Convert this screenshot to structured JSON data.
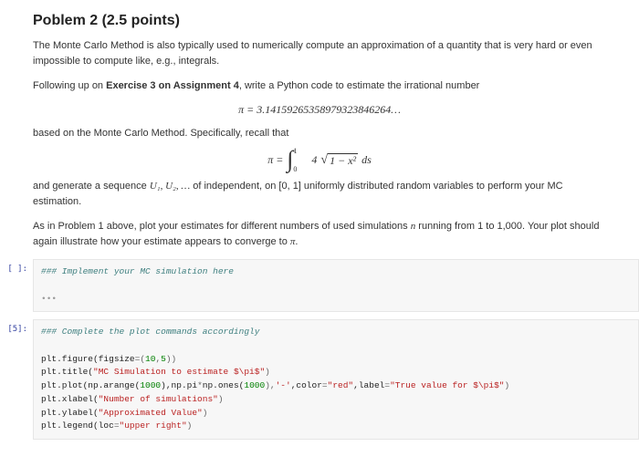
{
  "title": "Poblem 2 (2.5 points)",
  "para1": "The Monte Carlo Method is also typically used to numerically compute an approximation of a quantity that is very hard or even impossible to compute like, e.g., integrals.",
  "para2_pre": "Following up on ",
  "para2_bold": "Exercise 3 on Assignment 4",
  "para2_post": ", write a Python code to estimate the irrational number",
  "formula1": "π = 3.14159265358979323846264…",
  "para3": "based on the Monte Carlo Method. Specifically, recall that",
  "formula2_lhs": "π = ",
  "formula2_coeff": "4",
  "formula2_radicand": "1 − x²",
  "formula2_ds": "ds",
  "formula2_low": "0",
  "formula2_up": "1",
  "para4_pre": "and generate a sequence ",
  "para4_seq": "U₁, U₂, …",
  "para4_mid": " of independent, on ",
  "para4_interval": "[0, 1]",
  "para4_post": " uniformly distributed random variables to perform your MC estimation.",
  "para5_pre": "As in Problem 1 above, plot your estimates for different numbers of used simulations ",
  "para5_n": "n",
  "para5_mid": " running from 1 to 1,000. Your plot should again illustrate how your estimate appears to converge to ",
  "para5_pi": "π",
  "para5_end": ".",
  "cell1": {
    "prompt": "[ ]:",
    "comment": "### Implement your MC simulation here",
    "ellipsis": "•••"
  },
  "cell2": {
    "prompt": "[5]:",
    "comment": "### Complete the plot commands accordingly",
    "lines": {
      "l1_a": "plt.figure(figsize",
      "l1_b": "=(",
      "l1_c": "10",
      "l1_d": ",",
      "l1_e": "5",
      "l1_f": "))",
      "l2_a": "plt.title(",
      "l2_b": "\"MC Simulation to estimate $\\pi$\"",
      "l2_c": ")",
      "l3_a": "plt.plot(np.arange(",
      "l3_b": "1000",
      "l3_c": "),np.pi",
      "l3_d": "*",
      "l3_e": "np.ones(",
      "l3_f": "1000",
      "l3_g": "),",
      "l3_h": "'-'",
      "l3_i": ",color",
      "l3_j": "=",
      "l3_k": "\"red\"",
      "l3_l": ",label",
      "l3_m": "=",
      "l3_n": "\"True value for $\\pi$\"",
      "l3_o": ")",
      "l4_a": "plt.xlabel(",
      "l4_b": "\"Number of simulations\"",
      "l4_c": ")",
      "l5_a": "plt.ylabel(",
      "l5_b": "\"Approximated Value\"",
      "l5_c": ")",
      "l6_a": "plt.legend(loc",
      "l6_b": "=",
      "l6_c": "\"upper right\"",
      "l6_d": ")"
    }
  }
}
